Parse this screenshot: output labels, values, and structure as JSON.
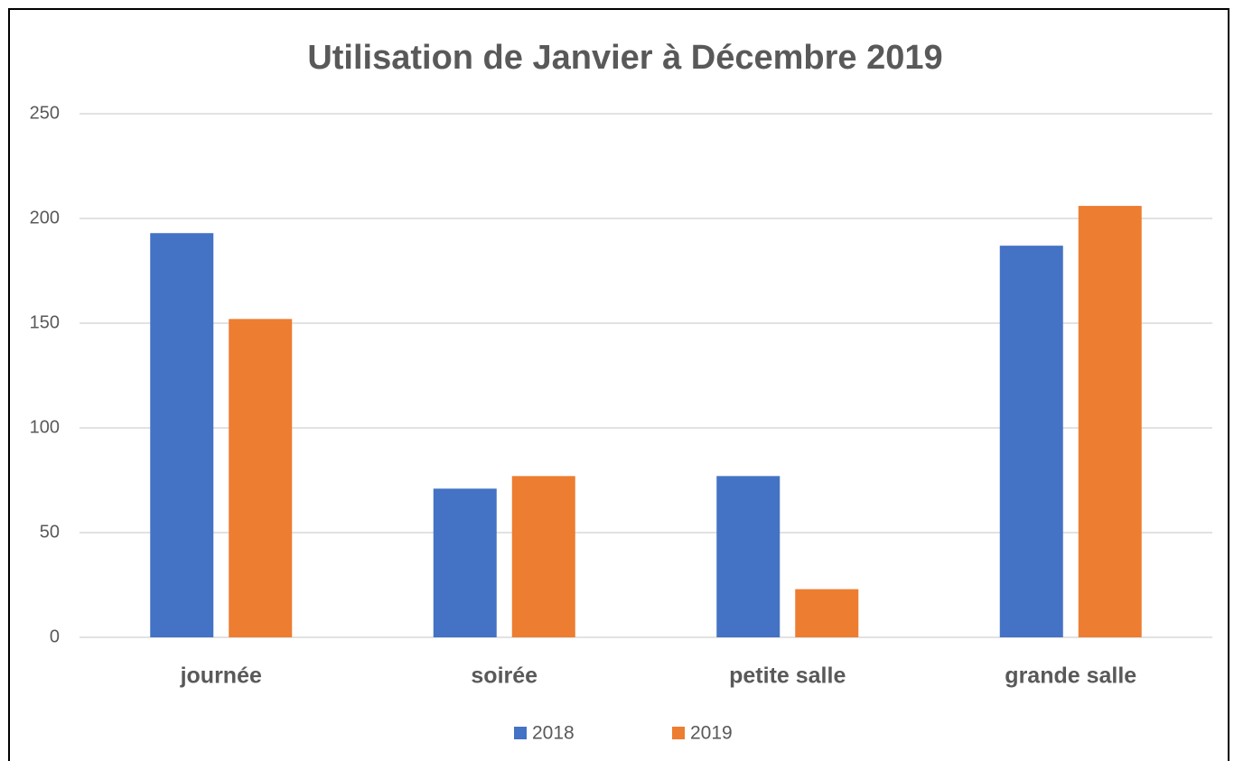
{
  "chart_data": {
    "type": "bar",
    "title": "Utilisation de Janvier à Décembre 2019",
    "categories": [
      "journée",
      "soirée",
      "petite salle",
      "grande salle"
    ],
    "series": [
      {
        "name": "2018",
        "color": "#4472c4",
        "values": [
          193,
          71,
          77,
          187
        ]
      },
      {
        "name": "2019",
        "color": "#ed7d31",
        "values": [
          152,
          77,
          23,
          206
        ]
      }
    ],
    "ylim": [
      0,
      250
    ],
    "yticks": [
      0,
      50,
      100,
      150,
      200,
      250
    ],
    "grid": true,
    "legend": "bottom"
  }
}
